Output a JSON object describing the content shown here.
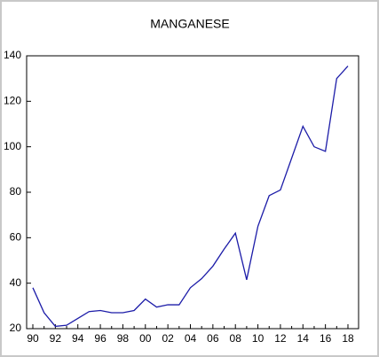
{
  "chart_data": {
    "type": "line",
    "title": "MANGANESE",
    "categories": [
      "90",
      null,
      "92",
      null,
      "94",
      null,
      "96",
      null,
      "98",
      null,
      "00",
      null,
      "02",
      null,
      "04",
      null,
      "06",
      null,
      "08",
      null,
      "10",
      null,
      "12",
      null,
      "14",
      null,
      "16",
      null,
      "18"
    ],
    "values": [
      38,
      27,
      21,
      21.5,
      24.5,
      27.5,
      28,
      27,
      27,
      28,
      33,
      29.5,
      30.5,
      30.5,
      38,
      42,
      47.5,
      55,
      62,
      41.5,
      65,
      78.5,
      81,
      95,
      109,
      100,
      98,
      130,
      135.5
    ],
    "color": "#1c1ca8",
    "ylim": [
      20,
      140
    ],
    "yticks": [
      20,
      40,
      60,
      80,
      100,
      120,
      140
    ],
    "grid": false
  }
}
